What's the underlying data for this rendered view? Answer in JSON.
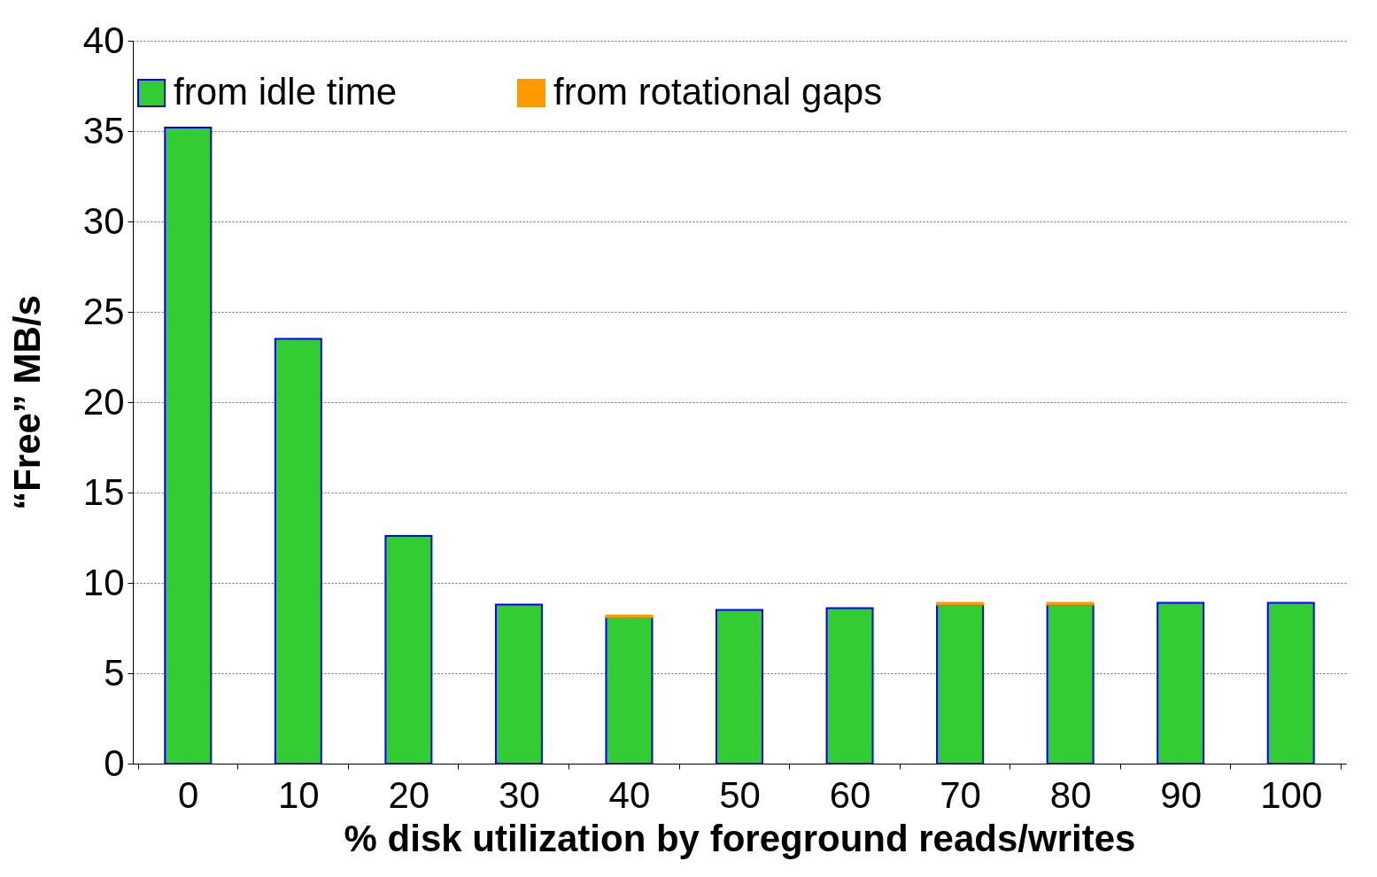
{
  "chart_data": {
    "type": "bar",
    "stacked": true,
    "xlabel": "% disk utilization by foreground reads/writes",
    "ylabel": "“Free” MB/s",
    "categories": [
      "0",
      "10",
      "20",
      "30",
      "40",
      "50",
      "60",
      "70",
      "80",
      "90",
      "100"
    ],
    "series": [
      {
        "name": "from idle time",
        "color": "#33cc33",
        "values": [
          35.2,
          23.5,
          12.6,
          8.8,
          8.1,
          8.5,
          8.6,
          8.8,
          8.8,
          8.9,
          8.9
        ]
      },
      {
        "name": "from rotational gaps",
        "color": "#ff9900",
        "values": [
          0,
          0,
          0,
          0,
          0.1,
          0,
          0,
          0.1,
          0.1,
          0,
          0
        ]
      }
    ],
    "ylim": [
      0,
      40
    ],
    "yticks": [
      0,
      5,
      10,
      15,
      20,
      25,
      30,
      35,
      40
    ],
    "grid": "y",
    "legend": "top"
  }
}
